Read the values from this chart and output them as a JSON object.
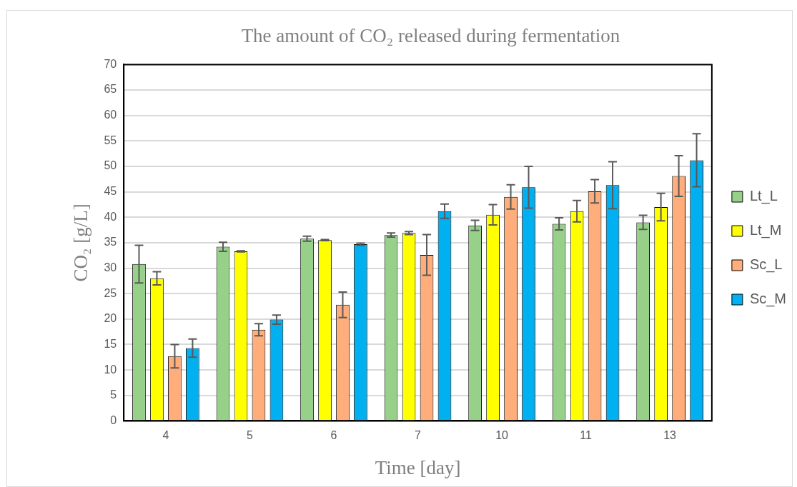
{
  "chart_data": {
    "type": "bar",
    "title": "The amount of CO₂ released during fermentation",
    "xlabel": "Time [day]",
    "ylabel": "CO₂ [g/L]",
    "categories": [
      "4",
      "5",
      "6",
      "7",
      "10",
      "11",
      "13"
    ],
    "series": [
      {
        "name": "Lt_L",
        "color": "#97d089",
        "values": [
          30.8,
          34.2,
          35.8,
          36.5,
          38.4,
          38.7,
          39.0
        ],
        "errors": [
          3.7,
          0.9,
          0.5,
          0.4,
          1.0,
          1.2,
          1.4
        ]
      },
      {
        "name": "Lt_M",
        "color": "#ffff00",
        "values": [
          28.0,
          33.3,
          35.5,
          36.9,
          40.5,
          41.2,
          42.0
        ],
        "errors": [
          1.3,
          0.1,
          0.1,
          0.3,
          2.0,
          2.1,
          2.7
        ]
      },
      {
        "name": "Sc_L",
        "color": "#ffad7a",
        "values": [
          12.7,
          17.9,
          22.8,
          32.6,
          44.0,
          45.1,
          48.1
        ],
        "errors": [
          2.3,
          1.2,
          2.5,
          4.0,
          2.4,
          2.3,
          4.0
        ]
      },
      {
        "name": "Sc_M",
        "color": "#00b0f0",
        "values": [
          14.3,
          19.9,
          34.7,
          41.2,
          45.9,
          46.3,
          51.2
        ],
        "errors": [
          1.8,
          0.9,
          0.2,
          1.4,
          4.1,
          4.6,
          5.2
        ]
      }
    ],
    "ylim": [
      0,
      70
    ],
    "yticks": [
      0,
      5,
      10,
      15,
      20,
      25,
      30,
      35,
      40,
      45,
      50,
      55,
      60,
      65,
      70
    ],
    "grid": "y",
    "legend": "right"
  }
}
